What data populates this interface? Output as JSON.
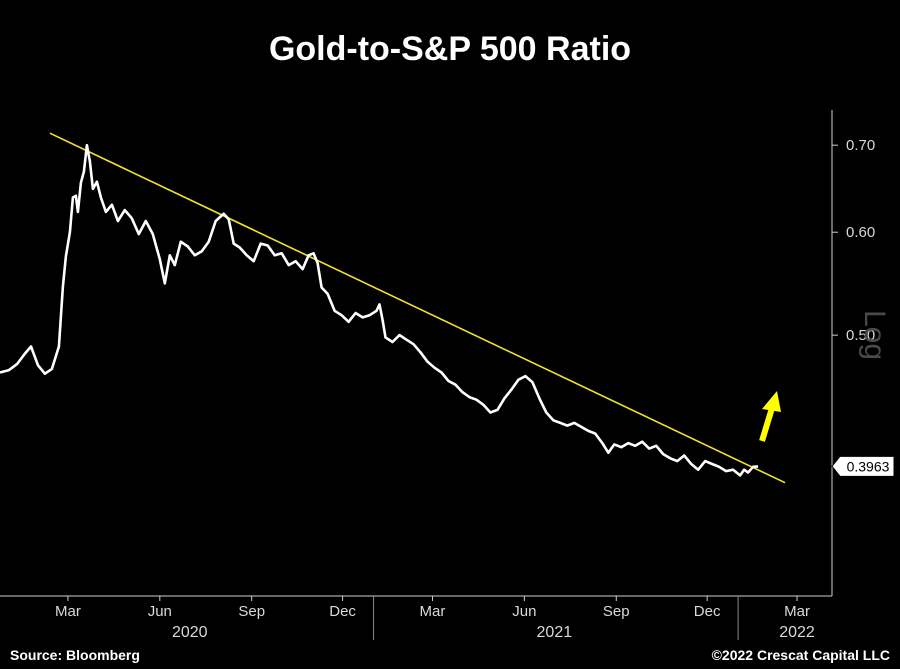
{
  "chart_data": {
    "type": "line",
    "title": "Gold-to-S&P 500 Ratio",
    "scale": "Log",
    "y_axis_side": "right",
    "y_ticks": [
      0.5,
      0.6,
      0.7
    ],
    "y_tick_labels": [
      "0.50",
      "0.60",
      "0.70"
    ],
    "ylim": [
      0.315,
      0.745
    ],
    "x_range": [
      "2019-12-24",
      "2022-04-05"
    ],
    "x_tick_labels": [
      {
        "label": "Mar",
        "date": "2020-03-01"
      },
      {
        "label": "Jun",
        "date": "2020-06-01"
      },
      {
        "label": "Sep",
        "date": "2020-09-01"
      },
      {
        "label": "Dec",
        "date": "2020-12-01"
      },
      {
        "label": "Mar",
        "date": "2021-03-01"
      },
      {
        "label": "Jun",
        "date": "2021-06-01"
      },
      {
        "label": "Sep",
        "date": "2021-09-01"
      },
      {
        "label": "Dec",
        "date": "2021-12-01"
      },
      {
        "label": "Mar",
        "date": "2022-03-01"
      }
    ],
    "year_labels": [
      {
        "label": "2020",
        "date": "2020-07-01"
      },
      {
        "label": "2021",
        "date": "2021-07-01"
      },
      {
        "label": "2022",
        "date": "2022-03-01"
      }
    ],
    "year_separators": [
      "2021-01-01",
      "2022-01-01"
    ],
    "series": [
      {
        "name": "Gold-to-S&P 500 Ratio",
        "color": "#ffffff",
        "points": [
          [
            "2019-12-24",
            0.468
          ],
          [
            "2020-01-02",
            0.47
          ],
          [
            "2020-01-10",
            0.475
          ],
          [
            "2020-01-18",
            0.484
          ],
          [
            "2020-01-24",
            0.49
          ],
          [
            "2020-01-31",
            0.474
          ],
          [
            "2020-02-07",
            0.467
          ],
          [
            "2020-02-14",
            0.471
          ],
          [
            "2020-02-21",
            0.49
          ],
          [
            "2020-02-25",
            0.545
          ],
          [
            "2020-02-28",
            0.575
          ],
          [
            "2020-03-03",
            0.6
          ],
          [
            "2020-03-06",
            0.638
          ],
          [
            "2020-03-09",
            0.64
          ],
          [
            "2020-03-11",
            0.622
          ],
          [
            "2020-03-14",
            0.655
          ],
          [
            "2020-03-17",
            0.668
          ],
          [
            "2020-03-20",
            0.7
          ],
          [
            "2020-03-23",
            0.68
          ],
          [
            "2020-03-26",
            0.648
          ],
          [
            "2020-03-30",
            0.656
          ],
          [
            "2020-04-03",
            0.638
          ],
          [
            "2020-04-08",
            0.622
          ],
          [
            "2020-04-14",
            0.63
          ],
          [
            "2020-04-20",
            0.612
          ],
          [
            "2020-04-27",
            0.624
          ],
          [
            "2020-05-04",
            0.615
          ],
          [
            "2020-05-11",
            0.598
          ],
          [
            "2020-05-18",
            0.612
          ],
          [
            "2020-05-25",
            0.598
          ],
          [
            "2020-06-01",
            0.572
          ],
          [
            "2020-06-06",
            0.548
          ],
          [
            "2020-06-11",
            0.576
          ],
          [
            "2020-06-16",
            0.566
          ],
          [
            "2020-06-22",
            0.59
          ],
          [
            "2020-06-29",
            0.585
          ],
          [
            "2020-07-06",
            0.576
          ],
          [
            "2020-07-13",
            0.58
          ],
          [
            "2020-07-20",
            0.59
          ],
          [
            "2020-07-27",
            0.612
          ],
          [
            "2020-08-04",
            0.62
          ],
          [
            "2020-08-09",
            0.614
          ],
          [
            "2020-08-14",
            0.588
          ],
          [
            "2020-08-20",
            0.584
          ],
          [
            "2020-08-27",
            0.576
          ],
          [
            "2020-09-03",
            0.57
          ],
          [
            "2020-09-10",
            0.588
          ],
          [
            "2020-09-17",
            0.586
          ],
          [
            "2020-09-24",
            0.576
          ],
          [
            "2020-10-01",
            0.578
          ],
          [
            "2020-10-08",
            0.566
          ],
          [
            "2020-10-15",
            0.57
          ],
          [
            "2020-10-22",
            0.562
          ],
          [
            "2020-10-28",
            0.576
          ],
          [
            "2020-11-02",
            0.578
          ],
          [
            "2020-11-06",
            0.568
          ],
          [
            "2020-11-10",
            0.544
          ],
          [
            "2020-11-16",
            0.538
          ],
          [
            "2020-11-23",
            0.522
          ],
          [
            "2020-11-30",
            0.518
          ],
          [
            "2020-12-07",
            0.512
          ],
          [
            "2020-12-14",
            0.52
          ],
          [
            "2020-12-21",
            0.516
          ],
          [
            "2020-12-28",
            0.518
          ],
          [
            "2021-01-04",
            0.522
          ],
          [
            "2021-01-07",
            0.528
          ],
          [
            "2021-01-10",
            0.514
          ],
          [
            "2021-01-13",
            0.498
          ],
          [
            "2021-01-20",
            0.494
          ],
          [
            "2021-01-27",
            0.5
          ],
          [
            "2021-02-03",
            0.496
          ],
          [
            "2021-02-10",
            0.492
          ],
          [
            "2021-02-17",
            0.485
          ],
          [
            "2021-02-24",
            0.477
          ],
          [
            "2021-03-03",
            0.472
          ],
          [
            "2021-03-10",
            0.468
          ],
          [
            "2021-03-17",
            0.461
          ],
          [
            "2021-03-24",
            0.458
          ],
          [
            "2021-03-31",
            0.452
          ],
          [
            "2021-04-07",
            0.448
          ],
          [
            "2021-04-14",
            0.446
          ],
          [
            "2021-04-21",
            0.442
          ],
          [
            "2021-04-28",
            0.436
          ],
          [
            "2021-05-05",
            0.438
          ],
          [
            "2021-05-12",
            0.447
          ],
          [
            "2021-05-19",
            0.454
          ],
          [
            "2021-05-26",
            0.462
          ],
          [
            "2021-06-02",
            0.465
          ],
          [
            "2021-06-09",
            0.46
          ],
          [
            "2021-06-16",
            0.447
          ],
          [
            "2021-06-23",
            0.436
          ],
          [
            "2021-06-30",
            0.43
          ],
          [
            "2021-07-07",
            0.428
          ],
          [
            "2021-07-14",
            0.426
          ],
          [
            "2021-07-21",
            0.428
          ],
          [
            "2021-07-28",
            0.425
          ],
          [
            "2021-08-04",
            0.422
          ],
          [
            "2021-08-11",
            0.42
          ],
          [
            "2021-08-18",
            0.413
          ],
          [
            "2021-08-24",
            0.406
          ],
          [
            "2021-08-30",
            0.412
          ],
          [
            "2021-09-06",
            0.41
          ],
          [
            "2021-09-13",
            0.413
          ],
          [
            "2021-09-20",
            0.411
          ],
          [
            "2021-09-27",
            0.414
          ],
          [
            "2021-10-04",
            0.409
          ],
          [
            "2021-10-11",
            0.411
          ],
          [
            "2021-10-18",
            0.405
          ],
          [
            "2021-10-25",
            0.402
          ],
          [
            "2021-11-01",
            0.4
          ],
          [
            "2021-11-08",
            0.404
          ],
          [
            "2021-11-15",
            0.398
          ],
          [
            "2021-11-22",
            0.394
          ],
          [
            "2021-11-29",
            0.4
          ],
          [
            "2021-12-06",
            0.398
          ],
          [
            "2021-12-13",
            0.396
          ],
          [
            "2021-12-20",
            0.393
          ],
          [
            "2021-12-27",
            0.394
          ],
          [
            "2022-01-03",
            0.39
          ],
          [
            "2022-01-07",
            0.394
          ],
          [
            "2022-01-11",
            0.392
          ],
          [
            "2022-01-16",
            0.396
          ],
          [
            "2022-01-21",
            0.3963
          ]
        ]
      },
      {
        "name": "Downtrend line",
        "color": "#f2e32a",
        "points": [
          [
            "2020-02-12",
            0.715
          ],
          [
            "2022-02-17",
            0.385
          ]
        ]
      }
    ],
    "last_value_label": "0.3963",
    "annotations": [
      {
        "type": "arrow",
        "direction": "up",
        "color": "#ffff00"
      }
    ]
  },
  "footer": {
    "source": "Source: Bloomberg",
    "copyright": "©2022 Crescat Capital LLC"
  }
}
